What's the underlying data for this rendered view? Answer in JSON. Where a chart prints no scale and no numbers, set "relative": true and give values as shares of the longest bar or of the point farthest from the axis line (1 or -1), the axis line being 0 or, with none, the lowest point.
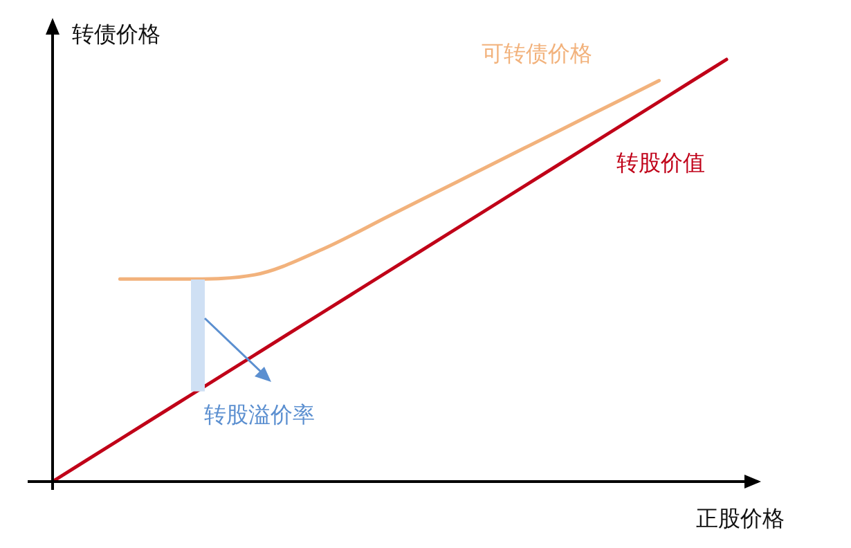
{
  "chart_data": {
    "type": "line",
    "relative": true,
    "xlabel": "正股价格",
    "ylabel": "转债价格",
    "categories": [
      null,
      null,
      null,
      null,
      null,
      null,
      null,
      null,
      null,
      null,
      null
    ],
    "series": [
      {
        "name": "可转债价格",
        "color": "#f2b27c",
        "values": [
          null,
          0.48,
          0.48,
          0.49,
          0.55,
          0.63,
          0.71,
          0.79,
          0.87,
          0.95,
          null
        ]
      },
      {
        "name": "转股价值",
        "color": "#c00018",
        "values": [
          0,
          0.1,
          0.2,
          0.3,
          0.4,
          0.5,
          0.6,
          0.7,
          0.8,
          0.9,
          1
        ]
      }
    ],
    "annotations": [
      "转股溢价率"
    ],
    "marker": "none"
  }
}
